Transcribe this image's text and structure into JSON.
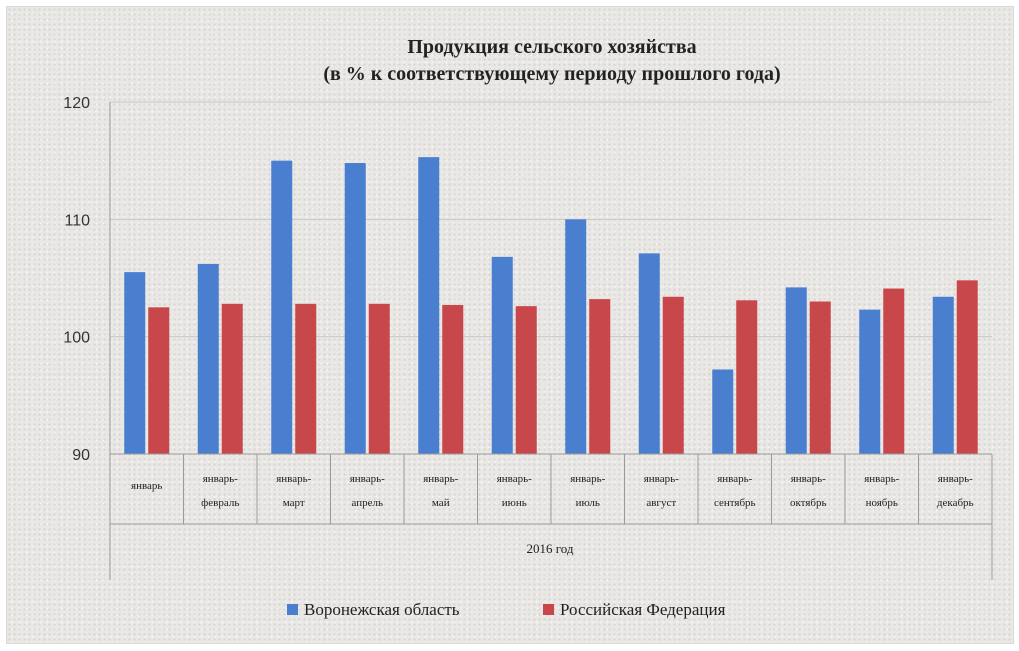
{
  "chart_data": {
    "type": "bar",
    "title": "Продукция сельского хозяйства",
    "subtitle": "(в % к соответствующему периоду прошлого года)",
    "group_label": "2016 год",
    "categories": [
      [
        "январь"
      ],
      [
        "январь-",
        "февраль"
      ],
      [
        "январь-",
        "март"
      ],
      [
        "январь-",
        "апрель"
      ],
      [
        "январь-",
        "май"
      ],
      [
        "январь-",
        "июнь"
      ],
      [
        "январь-",
        "июль"
      ],
      [
        "январь-",
        "август"
      ],
      [
        "январь-",
        "сентябрь"
      ],
      [
        "январь-",
        "октябрь"
      ],
      [
        "январь-",
        "ноябрь"
      ],
      [
        "январь-",
        "декабрь"
      ]
    ],
    "series": [
      {
        "name": "Воронежская область",
        "color": "#4a7fd0",
        "values": [
          105.5,
          106.2,
          115.0,
          114.8,
          115.3,
          106.8,
          110.0,
          107.1,
          97.2,
          104.2,
          102.3,
          103.4
        ]
      },
      {
        "name": "Российская Федерация",
        "color": "#c8474a",
        "values": [
          102.5,
          102.8,
          102.8,
          102.8,
          102.7,
          102.6,
          103.2,
          103.4,
          103.1,
          103.0,
          104.1,
          104.8
        ]
      }
    ],
    "ylim": [
      90,
      120
    ],
    "yticks": [
      90,
      100,
      110,
      120
    ],
    "grid": true,
    "legend_position": "bottom"
  }
}
